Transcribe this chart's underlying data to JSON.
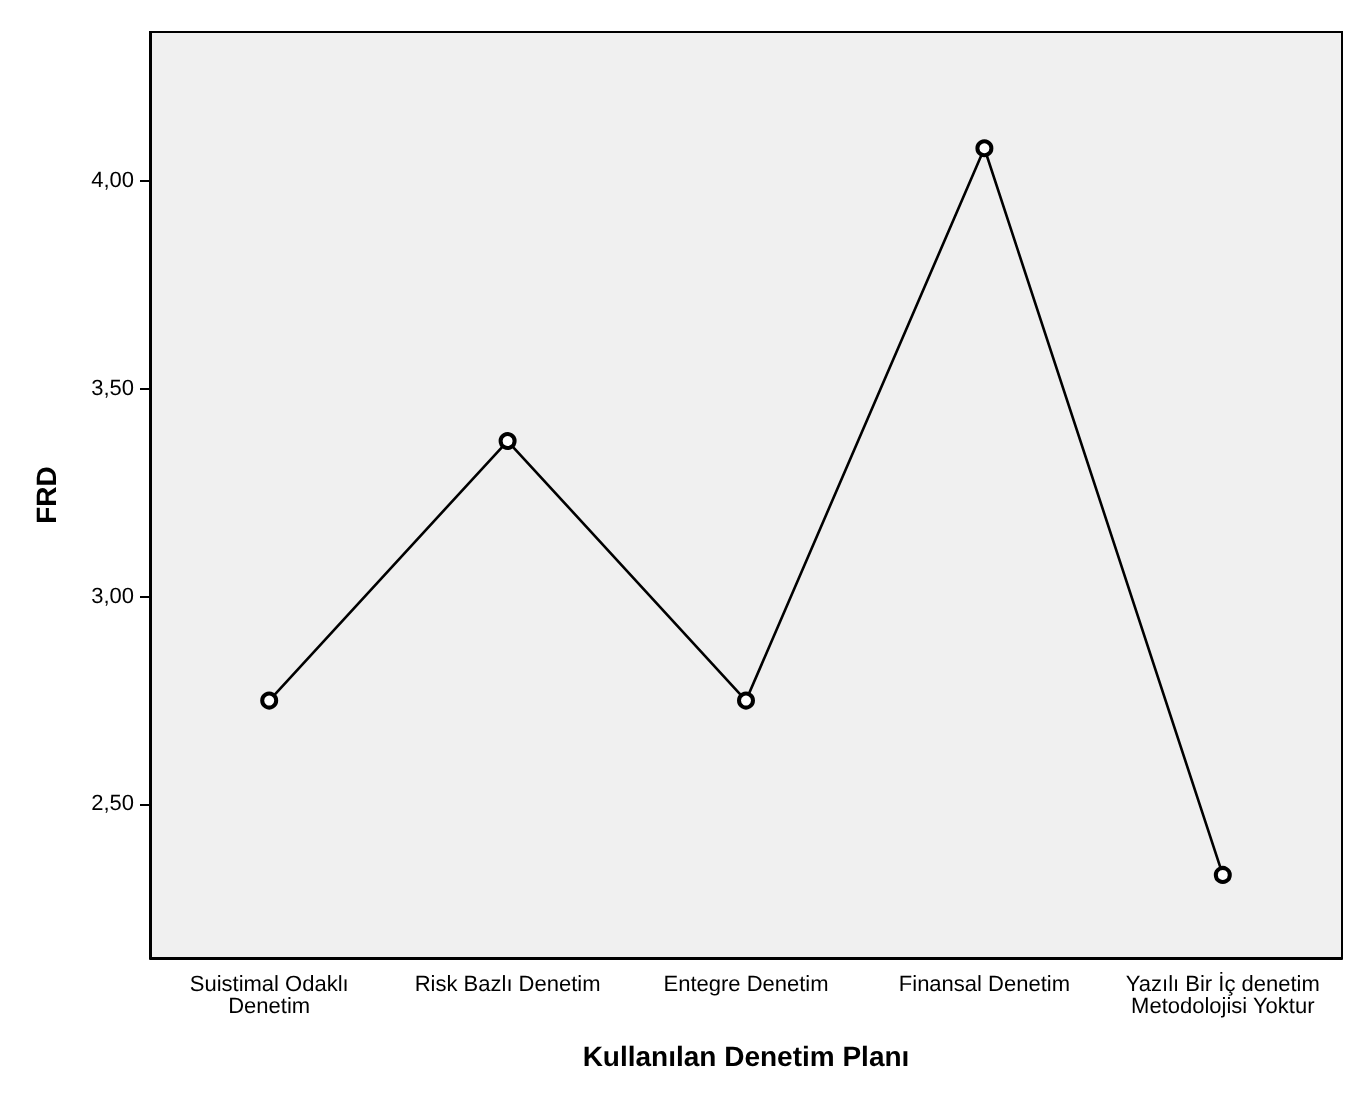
{
  "chart_data": {
    "type": "line",
    "xlabel": "Kullanılan Denetim Planı",
    "ylabel": "FRD",
    "categories": [
      "Suistimal Odaklı\nDenetim",
      "Risk Bazlı Denetim",
      "Entegre Denetim",
      "Finansal Denetim",
      "Yazılı Bir İç denetim\nMetodolojisi Yoktur"
    ],
    "series": [
      {
        "color": "#000000",
        "values": [
          2.75,
          3.375,
          2.75,
          4.08,
          2.33
        ]
      }
    ],
    "ylim": [
      2.13,
      4.36
    ],
    "yticks": [
      {
        "value": 2.5,
        "label": "2,50"
      },
      {
        "value": 3,
        "label": "3,00"
      },
      {
        "value": 3.5,
        "label": "3,50"
      },
      {
        "value": 4,
        "label": "4,00"
      }
    ],
    "grid": false,
    "marker": "circle",
    "line_style": "solid"
  }
}
